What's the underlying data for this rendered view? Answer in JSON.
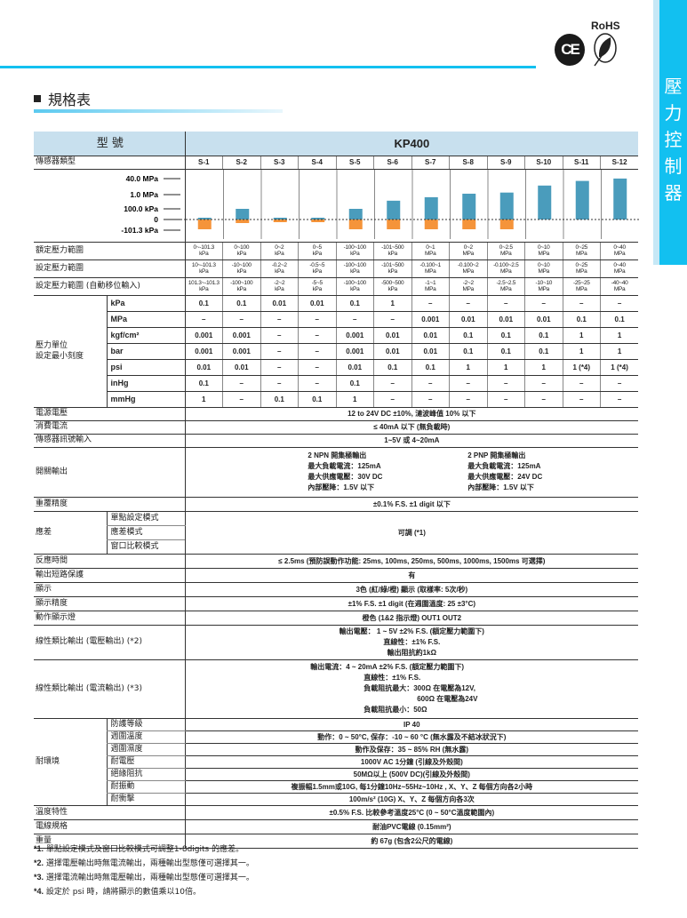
{
  "side_tab": [
    "壓",
    "力",
    "控",
    "制",
    "器"
  ],
  "logos": {
    "ce": "CE",
    "rohs": "RoHS"
  },
  "section_title": "規格表",
  "table": {
    "model_label": "型 號",
    "model": "KP400",
    "sensor_type_label": "傳感器類型",
    "sensors": [
      "S-1",
      "S-2",
      "S-3",
      "S-4",
      "S-5",
      "S-6",
      "S-7",
      "S-8",
      "S-9",
      "S-10",
      "S-11",
      "S-12"
    ],
    "rated_label": "額定壓力範圍",
    "rated": [
      [
        "0~-101.3",
        "kPa"
      ],
      [
        "0~100",
        "kPa"
      ],
      [
        "0~2",
        "kPa"
      ],
      [
        "0~5",
        "kPa"
      ],
      [
        "-100~100",
        "kPa"
      ],
      [
        "-101~500",
        "kPa"
      ],
      [
        "0~1",
        "MPa"
      ],
      [
        "0~2",
        "MPa"
      ],
      [
        "0~2.5",
        "MPa"
      ],
      [
        "0~10",
        "MPa"
      ],
      [
        "0~25",
        "MPa"
      ],
      [
        "0~40",
        "MPa"
      ]
    ],
    "set_label": "設定壓力範圍",
    "set": [
      [
        "10~-101.3",
        "kPa"
      ],
      [
        "-10~100",
        "kPa"
      ],
      [
        "-0.2~2",
        "kPa"
      ],
      [
        "-0.5~5",
        "kPa"
      ],
      [
        "-100~100",
        "kPa"
      ],
      [
        "-101~500",
        "kPa"
      ],
      [
        "-0.100~1",
        "MPa"
      ],
      [
        "-0.100~2",
        "MPa"
      ],
      [
        "-0.100~2.5",
        "MPa"
      ],
      [
        "0~10",
        "MPa"
      ],
      [
        "0~25",
        "MPa"
      ],
      [
        "0~40",
        "MPa"
      ]
    ],
    "auto_label": "設定壓力範圍 (自動移位輸入)",
    "auto": [
      [
        "101.3~-101.3",
        "kPa"
      ],
      [
        "-100~100",
        "kPa"
      ],
      [
        "-2~2",
        "kPa"
      ],
      [
        "-5~5",
        "kPa"
      ],
      [
        "-100~100",
        "kPa"
      ],
      [
        "-500~500",
        "kPa"
      ],
      [
        "-1~1",
        "MPa"
      ],
      [
        "-2~2",
        "MPa"
      ],
      [
        "-2.5~2.5",
        "MPa"
      ],
      [
        "-10~10",
        "MPa"
      ],
      [
        "-25~25",
        "MPa"
      ],
      [
        "-40~40",
        "MPa"
      ]
    ],
    "unit_group_label": [
      "壓力單位",
      "設定最小刻度"
    ],
    "units": [
      {
        "unit": "kPa",
        "values": [
          "0.1",
          "0.1",
          "0.01",
          "0.01",
          "0.1",
          "1",
          "–",
          "–",
          "–",
          "–",
          "–",
          "–"
        ]
      },
      {
        "unit": "MPa",
        "values": [
          "–",
          "–",
          "–",
          "–",
          "–",
          "–",
          "0.001",
          "0.01",
          "0.01",
          "0.01",
          "0.1",
          "0.1"
        ]
      },
      {
        "unit": "kgf/cm²",
        "values": [
          "0.001",
          "0.001",
          "–",
          "–",
          "0.001",
          "0.01",
          "0.01",
          "0.1",
          "0.1",
          "0.1",
          "1",
          "1"
        ]
      },
      {
        "unit": "bar",
        "values": [
          "0.001",
          "0.001",
          "–",
          "–",
          "0.001",
          "0.01",
          "0.01",
          "0.1",
          "0.1",
          "0.1",
          "1",
          "1"
        ]
      },
      {
        "unit": "psi",
        "values": [
          "0.01",
          "0.01",
          "–",
          "–",
          "0.01",
          "0.1",
          "0.1",
          "1",
          "1",
          "1",
          "1 (*4)",
          "1 (*4)"
        ]
      },
      {
        "unit": "inHg",
        "values": [
          "0.1",
          "–",
          "–",
          "–",
          "0.1",
          "–",
          "–",
          "–",
          "–",
          "–",
          "–",
          "–"
        ]
      },
      {
        "unit": "mmHg",
        "values": [
          "1",
          "–",
          "0.1",
          "0.1",
          "1",
          "–",
          "–",
          "–",
          "–",
          "–",
          "–",
          "–"
        ]
      }
    ],
    "rows1": [
      {
        "label": "電源電壓",
        "value": "12 to 24V DC ±10%, 漣波峰值 10% 以下"
      },
      {
        "label": "消費電流",
        "value": "≤ 40mA 以下 (無負載時)"
      },
      {
        "label": "傳感器訊號輸入",
        "value": "1~5V 或 4~20mA"
      }
    ],
    "switch_label": "開關輸出",
    "switch_npn": [
      "2 NPN 開集極輸出",
      "最大負載電流：125mA",
      "最大供應電壓：30V DC",
      "內部壓降：1.5V 以下"
    ],
    "switch_pnp": [
      "2 PNP 開集極輸出",
      "最大負載電流：125mA",
      "最大供應電壓：24V DC",
      "內部壓降：1.5V 以下"
    ],
    "repeat_label": "重覆精度",
    "repeat": "±0.1% F.S. ±1 digit 以下",
    "hyst_label": "應差",
    "hyst_modes": [
      "單點設定模式",
      "應差模式",
      "窗口比較模式"
    ],
    "hyst": "可調 (*1)",
    "rows2": [
      {
        "label": "反應時間",
        "value": "≤ 2.5ms (預防誤動作功能: 25ms, 100ms, 250ms, 500ms, 1000ms, 1500ms 可選擇)"
      },
      {
        "label": "輸出短路保護",
        "value": "有"
      },
      {
        "label": "顯示",
        "value": "3色 (紅/綠/橙) 顯示 (取樣率: 5次/秒)"
      },
      {
        "label": "顯示精度",
        "value": "±1% F.S. ±1 digit (在週圍溫度: 25 ±3°C)"
      },
      {
        "label": "動作顯示燈",
        "value": "橙色 (1&2 指示燈) OUT1 OUT2"
      }
    ],
    "lin_v_label": "線性類比輸出 (電壓輸出) (*2)",
    "lin_v": [
      "輸出電壓： 1 ~ 5V ±2% F.S. (額定壓力範圍下)",
      "直線性：±1% F.S.",
      "輸出阻抗約1kΩ"
    ],
    "lin_i_label": "線性類比輸出 (電流輸出) (*3)",
    "lin_i": [
      "輸出電流：4 ~ 20mA ±2% F.S. (額定壓力範圍下)",
      "直線性：±1% F.S.",
      "負載阻抗最大：300Ω 在電壓為12V,",
      "600Ω 在電壓為24V",
      "負載阻抗最小：50Ω"
    ],
    "env_label": "耐環境",
    "env": [
      {
        "label": "防護等級",
        "value": "IP 40"
      },
      {
        "label": "週圍溫度",
        "value": "動作：0 ~ 50°C, 保存：-10 ~ 60 °C (無水露及不結冰狀況下)"
      },
      {
        "label": "週圍濕度",
        "value": "動作及保存：35 ~ 85% RH (無水露)"
      },
      {
        "label": "耐電壓",
        "value": "1000V AC 1分鐘 (引線及外殼間)"
      },
      {
        "label": "絕緣阻抗",
        "value": "50MΩ以上 (500V DC)(引線及外殼間)"
      },
      {
        "label": "耐振動",
        "value": "複振幅1.5mm或10G, 每1分鐘10Hz~55Hz~10Hz , X、Y、Z 每個方向各2小時"
      },
      {
        "label": "耐衝擊",
        "value": "100m/s² (10G) X、Y、Z 每個方向各3次"
      }
    ],
    "rows3": [
      {
        "label": "溫度特性",
        "value": "±0.5% F.S. 比較參考溫度25°C (0 ~ 50°C溫度範圍內)"
      },
      {
        "label": "電線規格",
        "value": "耐油PVC電線 (0.15mm²)"
      },
      {
        "label": "重量",
        "value": "約 67g (包含2公尺的電線)"
      }
    ]
  },
  "chart_data": {
    "type": "bar",
    "categories": [
      "S-1",
      "S-2",
      "S-3",
      "S-4",
      "S-5",
      "S-6",
      "S-7",
      "S-8",
      "S-9",
      "S-10",
      "S-11",
      "S-12"
    ],
    "unit": "kPa",
    "y_ticks": [
      "40.0 MPa",
      "1.0 MPa",
      "100.0 kPa",
      "0",
      "-101.3 kPa"
    ],
    "scale": "nonlinear",
    "series": [
      {
        "values": [
          10,
          100,
          2,
          5,
          100,
          500,
          1000,
          2000,
          2500,
          10000,
          25000,
          40000
        ],
        "color": "#4a9cbc"
      },
      {
        "values": [
          -101.3,
          -10,
          -0.2,
          -0.5,
          -100,
          -101,
          -100,
          -100,
          -100,
          0,
          0,
          0
        ],
        "color": "#f5943a"
      }
    ]
  },
  "notes": [
    {
      "mark": "*1.",
      "text": "單點設定模式及窗口比較模式可調整1-8digits 的應差。"
    },
    {
      "mark": "*2.",
      "text": "選擇電壓輸出時無電流輸出，兩種輸出型態僅可選擇其一。"
    },
    {
      "mark": "*3.",
      "text": "選擇電流輸出時無電壓輸出，兩種輸出型態僅可選擇其一。"
    },
    {
      "mark": "*4.",
      "text": "設定於 psi 時，請將顯示的數值乘以10倍。"
    }
  ]
}
